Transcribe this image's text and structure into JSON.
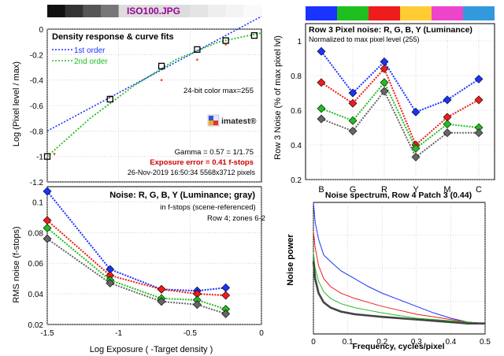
{
  "figure_title": "ISO100.JPG",
  "colors": {
    "blue": "#1a33ff",
    "red": "#ee1c1c",
    "green": "#1fbf1f",
    "gray": "#666666",
    "yellow": "#ffcc33",
    "magenta": "#ee44cc",
    "cyan": "#3399dd",
    "grid": "#bbbbbb"
  },
  "chart_data": [
    {
      "id": "density",
      "type": "scatter",
      "title": "Density response & curve fits",
      "xlabel": "",
      "ylabel": "Log (Pixel level / max)",
      "xlim": [
        -1.5,
        0
      ],
      "ylim": [
        -1.2,
        0
      ],
      "xticks": [],
      "yticks": [
        0,
        -0.2,
        -0.4,
        -0.6,
        -0.8,
        -1,
        -1.2
      ],
      "ytick_labels": [
        "0",
        "-0.2",
        "-0.4",
        "-0.6",
        "-0.8",
        "-1",
        "-1.2"
      ],
      "grid": true,
      "legend": [
        "1st order",
        "2nd order"
      ],
      "points": {
        "x": [
          -1.5,
          -1.06,
          -0.7,
          -0.45,
          -0.25,
          -0.05
        ],
        "y": [
          -1.0,
          -0.55,
          -0.29,
          -0.16,
          -0.09,
          -0.05
        ]
      },
      "red_points": {
        "x": [
          -1.45,
          -1.06,
          -0.7,
          -0.45,
          -0.25
        ],
        "y": [
          -0.98,
          -0.53,
          -0.4,
          -0.24,
          -0.12
        ]
      },
      "fit1": {
        "x": [
          -1.5,
          0
        ],
        "y": [
          -0.8,
          0.1
        ]
      },
      "fit2": {
        "x": [
          -1.5,
          -1.2,
          -0.9,
          -0.6,
          -0.3,
          0
        ],
        "y": [
          -1.0,
          -0.7,
          -0.45,
          -0.24,
          -0.1,
          -0.03
        ]
      },
      "annotations": [
        "24-bit color  max=255",
        "imatest®",
        "Gamma = 0.57 = 1/1.75",
        "Exposure error = 0.41 f-stops",
        "26-Nov-2019 16:50:34   5568x3712 pixels"
      ]
    },
    {
      "id": "rgb_noise",
      "type": "line",
      "title": "Row 3 Pixel noise: R, G, B, Y (Luminance)",
      "subtitle": "Normalized to max pixel level (255)",
      "ylabel": "Row 3 Noise (% of max pixel lvl)",
      "categories": [
        "B",
        "G",
        "R",
        "Y",
        "M",
        "C"
      ],
      "ylim": [
        0.2,
        1.1
      ],
      "yticks": [
        0.2,
        0.4,
        0.6,
        0.8,
        1
      ],
      "ytick_labels": [
        "0.2",
        "0.4",
        "0.6",
        "0.8",
        "1"
      ],
      "grid": true,
      "swatch_colors": [
        "#1a33ff",
        "#1fbf1f",
        "#ee1c1c",
        "#ffcc33",
        "#ee44cc",
        "#3399dd"
      ],
      "series": [
        {
          "color": "blue",
          "values": [
            0.94,
            0.7,
            0.88,
            0.59,
            0.66,
            0.78
          ]
        },
        {
          "color": "red",
          "values": [
            0.76,
            0.64,
            0.84,
            0.4,
            0.56,
            0.66
          ]
        },
        {
          "color": "green",
          "values": [
            0.61,
            0.54,
            0.76,
            0.38,
            0.52,
            0.5
          ]
        },
        {
          "color": "gray",
          "values": [
            0.55,
            0.48,
            0.71,
            0.33,
            0.47,
            0.47
          ]
        }
      ]
    },
    {
      "id": "rms_noise",
      "type": "line",
      "title": "Noise: R, G, B, Y (Luminance; gray)",
      "annotations": [
        "in f-stops (scene-referenced)",
        "Row 4; zones 6-2"
      ],
      "xlabel": "Log Exposure ( -Target density )",
      "ylabel": "RMS noise (f-stops)",
      "xlim": [
        -1.5,
        0
      ],
      "ylim": [
        0.02,
        0.11
      ],
      "xticks": [
        -1.5,
        -1,
        -0.5,
        0
      ],
      "xtick_labels": [
        "-1.5",
        "-1",
        "-0.5",
        "0"
      ],
      "yticks": [
        0.02,
        0.04,
        0.06,
        0.08,
        0.1
      ],
      "ytick_labels": [
        "0.02",
        "0.04",
        "0.06",
        "0.08",
        "0.1"
      ],
      "grid": true,
      "x": [
        -1.5,
        -1.06,
        -0.7,
        -0.45,
        -0.25
      ],
      "series": [
        {
          "color": "blue",
          "values": [
            0.107,
            0.056,
            0.043,
            0.042,
            0.044
          ]
        },
        {
          "color": "red",
          "values": [
            0.088,
            0.052,
            0.043,
            0.04,
            0.039
          ]
        },
        {
          "color": "green",
          "values": [
            0.083,
            0.049,
            0.037,
            0.036,
            0.03
          ]
        },
        {
          "color": "gray",
          "values": [
            0.076,
            0.047,
            0.035,
            0.033,
            0.027
          ]
        }
      ]
    },
    {
      "id": "spectrum",
      "type": "line",
      "title": "Noise spectrum, Row 4 Patch 3 (0.44)",
      "xlabel": "Frequency, cycles/pixel",
      "ylabel": "Noise power",
      "xlim": [
        0,
        0.5
      ],
      "xticks": [
        0,
        0.1,
        0.2,
        0.3,
        0.4,
        0.5
      ],
      "xtick_labels": [
        "0",
        "0.1",
        "0.2",
        "0.3",
        "0.4",
        "0.5"
      ],
      "grid": true,
      "series": [
        {
          "color": "blue",
          "x": [
            0,
            0.005,
            0.015,
            0.03,
            0.05,
            0.08,
            0.12,
            0.16,
            0.2,
            0.25,
            0.3,
            0.35,
            0.4,
            0.45,
            0.5
          ],
          "values": [
            1,
            0.85,
            0.72,
            0.6,
            0.55,
            0.48,
            0.42,
            0.36,
            0.31,
            0.26,
            0.21,
            0.16,
            0.12,
            0.09,
            0.08
          ]
        },
        {
          "color": "red",
          "x": [
            0,
            0.005,
            0.015,
            0.03,
            0.05,
            0.08,
            0.12,
            0.16,
            0.2,
            0.25,
            0.3,
            0.35,
            0.4,
            0.45,
            0.5
          ],
          "values": [
            0.78,
            0.66,
            0.52,
            0.42,
            0.36,
            0.31,
            0.27,
            0.24,
            0.21,
            0.18,
            0.15,
            0.13,
            0.11,
            0.09,
            0.08
          ]
        },
        {
          "color": "green",
          "x": [
            0,
            0.005,
            0.015,
            0.03,
            0.05,
            0.08,
            0.12,
            0.16,
            0.2,
            0.25,
            0.3,
            0.35,
            0.4,
            0.45,
            0.5
          ],
          "values": [
            0.62,
            0.5,
            0.4,
            0.32,
            0.27,
            0.23,
            0.2,
            0.18,
            0.16,
            0.14,
            0.12,
            0.11,
            0.1,
            0.09,
            0.08
          ]
        },
        {
          "color": "gray",
          "x": [
            0,
            0.005,
            0.015,
            0.03,
            0.05,
            0.08,
            0.12,
            0.16,
            0.2,
            0.25,
            0.3,
            0.35,
            0.4,
            0.45,
            0.5
          ],
          "values": [
            0.55,
            0.42,
            0.31,
            0.24,
            0.2,
            0.17,
            0.15,
            0.14,
            0.13,
            0.12,
            0.11,
            0.1,
            0.09,
            0.08,
            0.08
          ]
        }
      ]
    }
  ]
}
